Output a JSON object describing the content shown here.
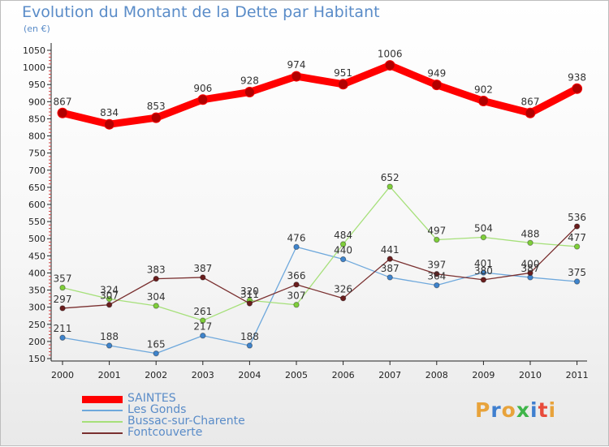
{
  "title": "Evolution du Montant de la Dette par Habitant",
  "unit": "(en €)",
  "logo": {
    "letters": [
      "P",
      "r",
      "o",
      "x",
      "i",
      "t",
      "i"
    ],
    "colors": [
      "#e8a33b",
      "#3f7fcf",
      "#e8a33b",
      "#3fb54a",
      "#3f7fcf",
      "#e84b3b",
      "#e8a33b"
    ]
  },
  "chart_data": {
    "type": "line",
    "x": [
      "2000",
      "2001",
      "2002",
      "2003",
      "2004",
      "2005",
      "2006",
      "2007",
      "2008",
      "2009",
      "2010",
      "2011"
    ],
    "ylim": [
      150,
      1050
    ],
    "yticks": [
      150,
      200,
      250,
      300,
      350,
      400,
      450,
      500,
      550,
      600,
      650,
      700,
      750,
      800,
      850,
      900,
      950,
      1000,
      1050
    ],
    "grid": false,
    "legend_position": "bottom-left",
    "series": [
      {
        "name": "SAINTES",
        "color": "#ff0000",
        "marker": "#b20000",
        "width": 9,
        "values": [
          867,
          834,
          853,
          906,
          928,
          974,
          951,
          1006,
          949,
          902,
          867,
          938
        ]
      },
      {
        "name": "Les Gonds",
        "color": "#6ea8dc",
        "marker": "#3f84cc",
        "width": 1.3,
        "values": [
          211,
          188,
          165,
          217,
          188,
          476,
          440,
          387,
          364,
          401,
          387,
          375
        ]
      },
      {
        "name": "Bussac-sur-Charente",
        "color": "#a6e07a",
        "marker": "#7fcf3a",
        "width": 1.3,
        "values": [
          357,
          324,
          304,
          261,
          320,
          307,
          484,
          652,
          497,
          504,
          488,
          477
        ]
      },
      {
        "name": "Fontcouverte",
        "color": "#7a3030",
        "marker": "#6a1e1e",
        "width": 1.3,
        "values": [
          297,
          307,
          383,
          387,
          311,
          366,
          326,
          441,
          397,
          380,
          400,
          536
        ]
      }
    ]
  }
}
